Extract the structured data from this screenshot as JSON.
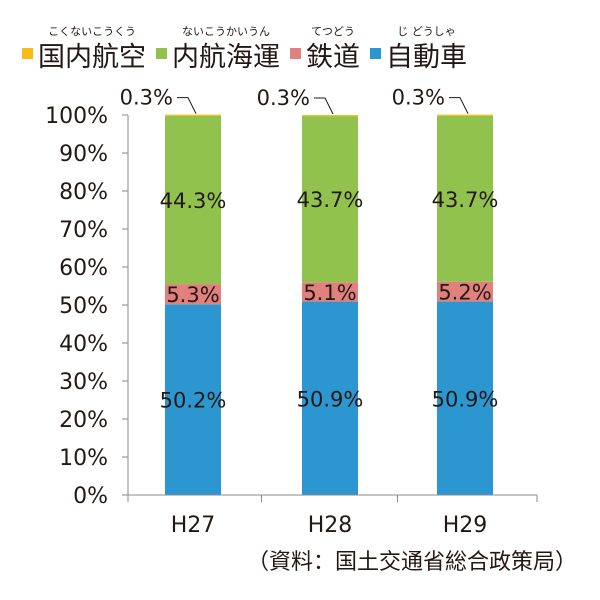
{
  "chart_data": {
    "type": "bar",
    "stacked": true,
    "categories": [
      "H27",
      "H28",
      "H29"
    ],
    "series": [
      {
        "name": "自動車",
        "ruby": "じ どうしゃ",
        "color": "#2b96cf",
        "values": [
          50.2,
          50.9,
          50.9
        ],
        "labels": [
          "50.2%",
          "50.9%",
          "50.9%"
        ]
      },
      {
        "name": "鉄道",
        "ruby": "てつどう",
        "color": "#e0817d",
        "values": [
          5.3,
          5.1,
          5.2
        ],
        "labels": [
          "5.3%",
          "5.1%",
          "5.2%"
        ]
      },
      {
        "name": "内航海運",
        "ruby": "ないこうかいうん",
        "color": "#92c24e",
        "values": [
          44.3,
          43.7,
          43.7
        ],
        "labels": [
          "44.3%",
          "43.7%",
          "43.7%"
        ]
      },
      {
        "name": "国内航空",
        "ruby": "こくないこうくう",
        "color": "#f7bd16",
        "values": [
          0.3,
          0.3,
          0.3
        ],
        "labels": [
          "0.3%",
          "0.3%",
          "0.3%"
        ]
      }
    ],
    "legend_order": [
      "国内航空",
      "内航海運",
      "鉄道",
      "自動車"
    ],
    "legend_position": "top",
    "ylim": [
      0,
      100
    ],
    "y_ticks": [
      "0%",
      "10%",
      "20%",
      "30%",
      "40%",
      "50%",
      "60%",
      "70%",
      "80%",
      "90%",
      "100%"
    ],
    "grid": false,
    "source_note": "（資料：国土交通省総合政策局）"
  }
}
